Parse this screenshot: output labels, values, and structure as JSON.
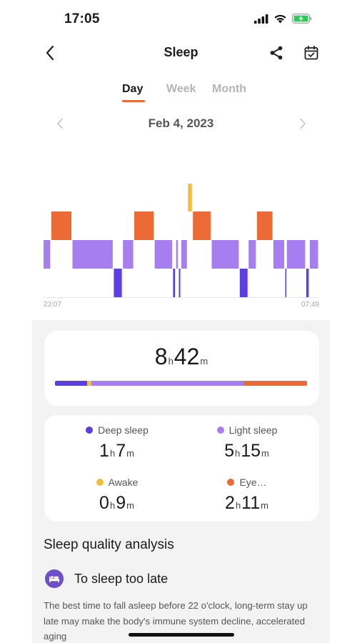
{
  "status_bar": {
    "time": "17:05",
    "icons": [
      "cellular-signal-icon",
      "wifi-icon",
      "battery-charging-icon"
    ]
  },
  "nav": {
    "title": "Sleep",
    "back_icon": "chevron-left-icon",
    "share_icon": "share-icon",
    "calendar_icon": "calendar-check-icon"
  },
  "tabs": [
    {
      "label": "Day",
      "active": true
    },
    {
      "label": "Week",
      "active": false
    },
    {
      "label": "Month",
      "active": false
    }
  ],
  "date": {
    "label": "Feb 4, 2023"
  },
  "chart": {
    "start_label": "23:07",
    "end_label": "07:49"
  },
  "chart_data": {
    "type": "sleep-hypnogram",
    "start_time": "23:07",
    "end_time": "07:49",
    "stages": [
      "awake",
      "eye_movement",
      "light",
      "deep"
    ],
    "segments": [
      {
        "stage": "light",
        "from": 0.0,
        "to": 0.028
      },
      {
        "stage": "eye_movement",
        "from": 0.028,
        "to": 0.105
      },
      {
        "stage": "light",
        "from": 0.105,
        "to": 0.255
      },
      {
        "stage": "deep",
        "from": 0.255,
        "to": 0.288
      },
      {
        "stage": "light",
        "from": 0.288,
        "to": 0.329
      },
      {
        "stage": "eye_movement",
        "from": 0.329,
        "to": 0.403
      },
      {
        "stage": "light",
        "from": 0.403,
        "to": 0.47
      },
      {
        "stage": "deep",
        "from": 0.47,
        "to": 0.481
      },
      {
        "stage": "light",
        "from": 0.481,
        "to": 0.491
      },
      {
        "stage": "deep",
        "from": 0.491,
        "to": 0.5
      },
      {
        "stage": "light",
        "from": 0.5,
        "to": 0.524
      },
      {
        "stage": "awake",
        "from": 0.524,
        "to": 0.542
      },
      {
        "stage": "eye_movement",
        "from": 0.542,
        "to": 0.61
      },
      {
        "stage": "light",
        "from": 0.61,
        "to": 0.712
      },
      {
        "stage": "deep",
        "from": 0.712,
        "to": 0.744
      },
      {
        "stage": "light",
        "from": 0.744,
        "to": 0.774
      },
      {
        "stage": "eye_movement",
        "from": 0.774,
        "to": 0.834
      },
      {
        "stage": "light",
        "from": 0.834,
        "to": 0.877
      },
      {
        "stage": "deep",
        "from": 0.877,
        "to": 0.883
      },
      {
        "stage": "light",
        "from": 0.883,
        "to": 0.953
      },
      {
        "stage": "deep",
        "from": 0.953,
        "to": 0.966
      },
      {
        "stage": "light",
        "from": 0.966,
        "to": 1.0
      }
    ]
  },
  "colors": {
    "deep": "#5b3fe0",
    "light": "#a67ef0",
    "awake": "#f0bf3c",
    "eye_movement": "#ec6a36",
    "accent": "#ec6a36",
    "panel_bg": "#f3f3f3"
  },
  "total": {
    "hours": "8",
    "hours_unit": "h",
    "minutes": "42",
    "minutes_unit": "m",
    "breakdown": [
      {
        "stage": "deep",
        "fraction": 0.128
      },
      {
        "stage": "awake",
        "fraction": 0.017
      },
      {
        "stage": "light",
        "fraction": 0.603
      },
      {
        "stage": "eye_movement",
        "fraction": 0.252
      }
    ]
  },
  "stages": [
    {
      "key": "deep",
      "label": "Deep sleep",
      "hours": "1",
      "minutes": "7"
    },
    {
      "key": "light",
      "label": "Light sleep",
      "hours": "5",
      "minutes": "15"
    },
    {
      "key": "awake",
      "label": "Awake",
      "hours": "0",
      "minutes": "9"
    },
    {
      "key": "eye_movement",
      "label": "Eye…",
      "hours": "2",
      "minutes": "11"
    }
  ],
  "units": {
    "h": "h",
    "m": "m"
  },
  "analysis": {
    "title": "Sleep quality analysis",
    "issue_icon": "sleep-bed-icon",
    "issue_title": "To sleep too late",
    "issue_desc": "The best time to fall asleep before 22 o'clock, long-term stay up late may make the body's immune system decline, accelerated aging"
  }
}
